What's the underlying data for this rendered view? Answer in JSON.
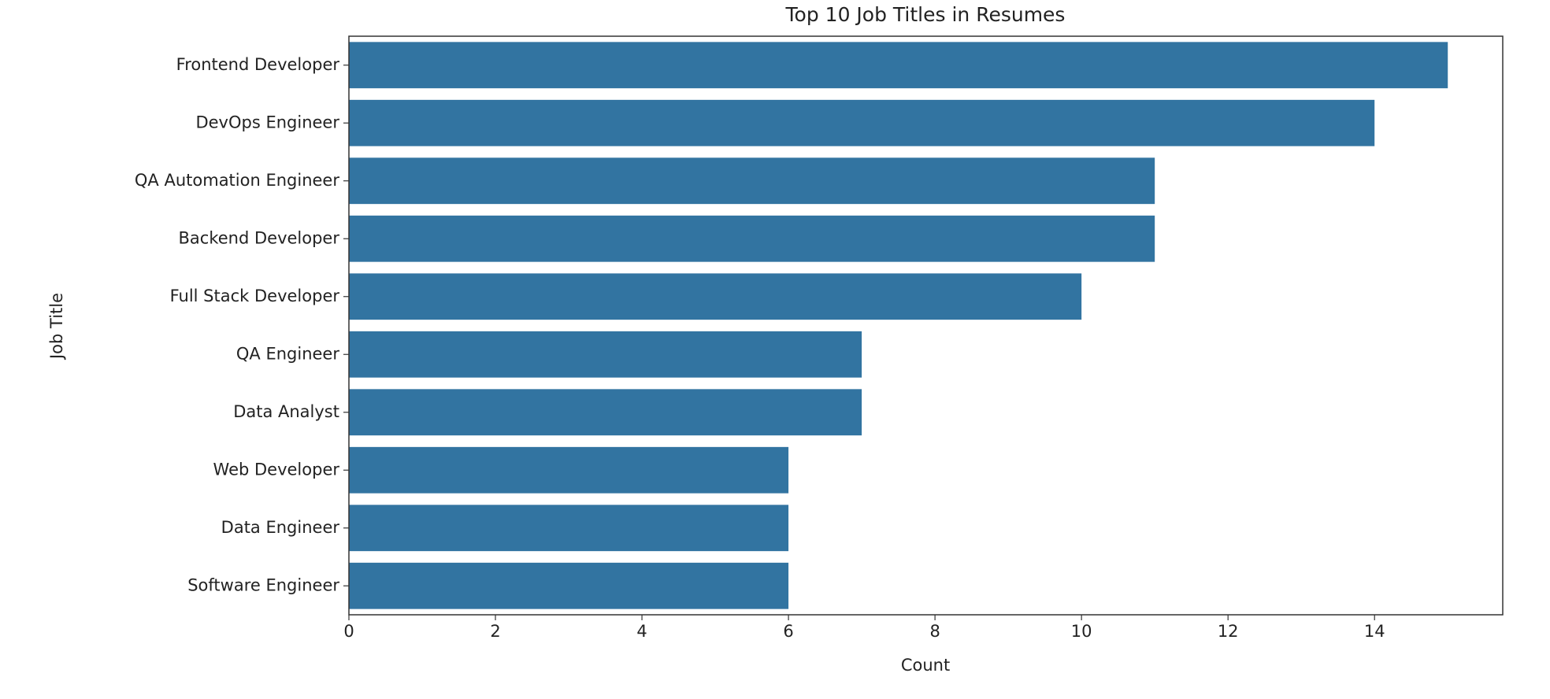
{
  "chart_data": {
    "type": "bar",
    "orientation": "horizontal",
    "title": "Top 10 Job Titles in Resumes",
    "x_label": "Count",
    "y_label": "Job Title",
    "categories": [
      "Frontend Developer",
      "DevOps Engineer",
      "QA Automation Engineer",
      "Backend Developer",
      "Full Stack Developer",
      "QA Engineer",
      "Data Analyst",
      "Web Developer",
      "Data Engineer",
      "Software Engineer"
    ],
    "values": [
      15,
      14,
      11,
      11,
      10,
      7,
      7,
      6,
      6,
      6
    ],
    "color": "#3274a1",
    "xlim": [
      0,
      15.75
    ],
    "xticks": [
      0,
      2,
      4,
      6,
      8,
      10,
      12,
      14
    ],
    "grid": false
  }
}
